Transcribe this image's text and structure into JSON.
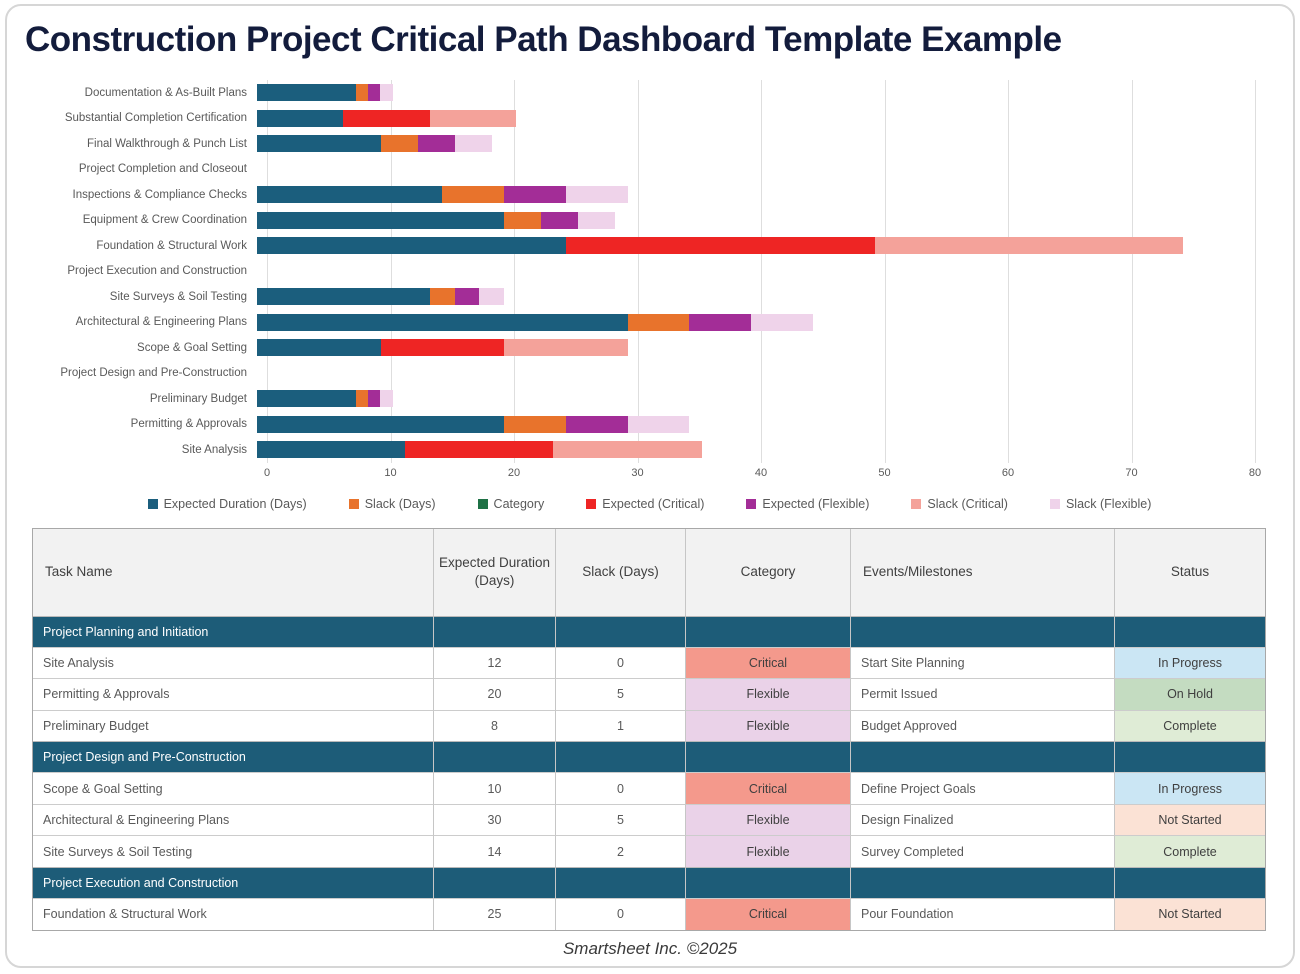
{
  "title": "Construction Project Critical Path Dashboard Template Example",
  "footer": "Smartsheet Inc. ©2025",
  "chart_data": {
    "type": "bar",
    "orientation": "horizontal",
    "stacked": true,
    "grid": true,
    "legend_position": "bottom",
    "xlim": [
      0,
      80
    ],
    "x_ticks": [
      0,
      10,
      20,
      30,
      40,
      50,
      60,
      70,
      80
    ],
    "categories": [
      "Documentation & As-Built Plans",
      "Substantial Completion Certification",
      "Final Walkthrough & Punch List",
      "Project Completion and Closeout",
      "Inspections & Compliance Checks",
      "Equipment & Crew Coordination",
      "Foundation & Structural Work",
      "Project Execution and Construction",
      "Site Surveys & Soil Testing",
      "Architectural & Engineering Plans",
      "Scope & Goal Setting",
      "Project Design and Pre-Construction",
      "Preliminary Budget",
      "Permitting & Approvals",
      "Site Analysis"
    ],
    "series": [
      {
        "name": "Expected Duration (Days)",
        "color": "#1b5e7d",
        "values": [
          8,
          7,
          10,
          0,
          15,
          20,
          25,
          0,
          14,
          30,
          10,
          0,
          8,
          20,
          12
        ]
      },
      {
        "name": "Slack (Days)",
        "color": "#e8732c",
        "values": [
          1,
          0,
          3,
          0,
          5,
          3,
          0,
          0,
          2,
          5,
          0,
          0,
          1,
          5,
          0
        ]
      },
      {
        "name": "Category",
        "color": "#1e7145",
        "values": [
          0,
          0,
          0,
          0,
          0,
          0,
          0,
          0,
          0,
          0,
          0,
          0,
          0,
          0,
          0
        ]
      },
      {
        "name": "Expected (Critical)",
        "color": "#ee2524",
        "values": [
          0,
          7,
          0,
          0,
          0,
          0,
          25,
          0,
          0,
          0,
          10,
          0,
          0,
          0,
          12
        ]
      },
      {
        "name": "Expected (Flexible)",
        "color": "#a32d97",
        "values": [
          1,
          0,
          3,
          0,
          5,
          3,
          0,
          0,
          2,
          5,
          0,
          0,
          1,
          5,
          0
        ]
      },
      {
        "name": "Slack (Critical)",
        "color": "#f4a29a",
        "values": [
          0,
          7,
          0,
          0,
          0,
          0,
          25,
          0,
          0,
          0,
          10,
          0,
          0,
          0,
          12
        ]
      },
      {
        "name": "Slack (Flexible)",
        "color": "#efd3ea",
        "values": [
          1,
          0,
          3,
          0,
          5,
          3,
          0,
          0,
          2,
          5,
          0,
          0,
          1,
          5,
          0
        ]
      }
    ]
  },
  "table": {
    "columns": [
      "Task Name",
      "Expected Duration (Days)",
      "Slack (Days)",
      "Category",
      "Events/Milestones",
      "Status"
    ],
    "section_header_bg": "#1d5c78",
    "category_colors": {
      "Critical": "#f4998c",
      "Flexible": "#ead2e8"
    },
    "status_colors": {
      "In Progress": "#cbe6f4",
      "On Hold": "#c4dcc1",
      "Complete": "#dfecd6",
      "Not Started": "#fbe2d5"
    },
    "sections": [
      {
        "header": "Project Planning and Initiation",
        "rows": [
          {
            "task": "Site Analysis",
            "duration": "12",
            "slack": "0",
            "category": "Critical",
            "milestone": "Start Site Planning",
            "status": "In Progress"
          },
          {
            "task": "Permitting & Approvals",
            "duration": "20",
            "slack": "5",
            "category": "Flexible",
            "milestone": "Permit Issued",
            "status": "On Hold"
          },
          {
            "task": "Preliminary Budget",
            "duration": "8",
            "slack": "1",
            "category": "Flexible",
            "milestone": "Budget Approved",
            "status": "Complete"
          }
        ]
      },
      {
        "header": "Project Design and Pre-Construction",
        "rows": [
          {
            "task": "Scope & Goal Setting",
            "duration": "10",
            "slack": "0",
            "category": "Critical",
            "milestone": "Define Project Goals",
            "status": "In Progress"
          },
          {
            "task": "Architectural & Engineering Plans",
            "duration": "30",
            "slack": "5",
            "category": "Flexible",
            "milestone": "Design Finalized",
            "status": "Not Started"
          },
          {
            "task": "Site Surveys & Soil Testing",
            "duration": "14",
            "slack": "2",
            "category": "Flexible",
            "milestone": "Survey Completed",
            "status": "Complete"
          }
        ]
      },
      {
        "header": "Project Execution and Construction",
        "rows": [
          {
            "task": "Foundation & Structural Work",
            "duration": "25",
            "slack": "0",
            "category": "Critical",
            "milestone": "Pour Foundation",
            "status": "Not Started"
          }
        ]
      }
    ]
  }
}
